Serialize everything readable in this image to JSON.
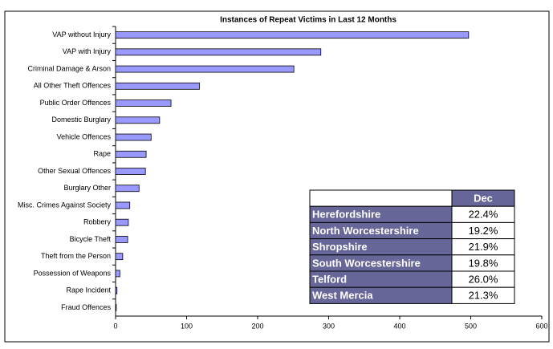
{
  "chart_data": {
    "type": "hbar",
    "title": "Instances of Repeat Victims in Last 12 Months",
    "categories": [
      "VAP without Injury",
      "VAP with Injury",
      "Criminal Damage & Arson",
      "All Other Theft Offences",
      "Public Order Offences",
      "Domestic Burglary",
      "Vehicle Offences",
      "Rape",
      "Other Sexual Offences",
      "Burglary Other",
      "Misc. Crimes Against Society",
      "Robbery",
      "Bicycle Theft",
      "Theft from the Person",
      "Possession of Weapons",
      "Rape Incident",
      "Fraud Offences"
    ],
    "values": [
      497,
      289,
      251,
      118,
      78,
      62,
      50,
      43,
      42,
      33,
      20,
      18,
      17,
      10,
      6,
      2,
      1
    ],
    "color": "#9999ff",
    "xlim": [
      0,
      600
    ],
    "xticks": [
      0,
      100,
      200,
      300,
      400,
      500,
      600
    ]
  },
  "table": {
    "header": "Dec",
    "rows": [
      [
        "Herefordshire",
        "22.4%"
      ],
      [
        "North Worcestershire",
        "19.2%"
      ],
      [
        "Shropshire",
        "21.9%"
      ],
      [
        "South Worcestershire",
        "19.8%"
      ],
      [
        "Telford",
        "26.0%"
      ],
      [
        "West Mercia",
        "21.3%"
      ]
    ]
  }
}
